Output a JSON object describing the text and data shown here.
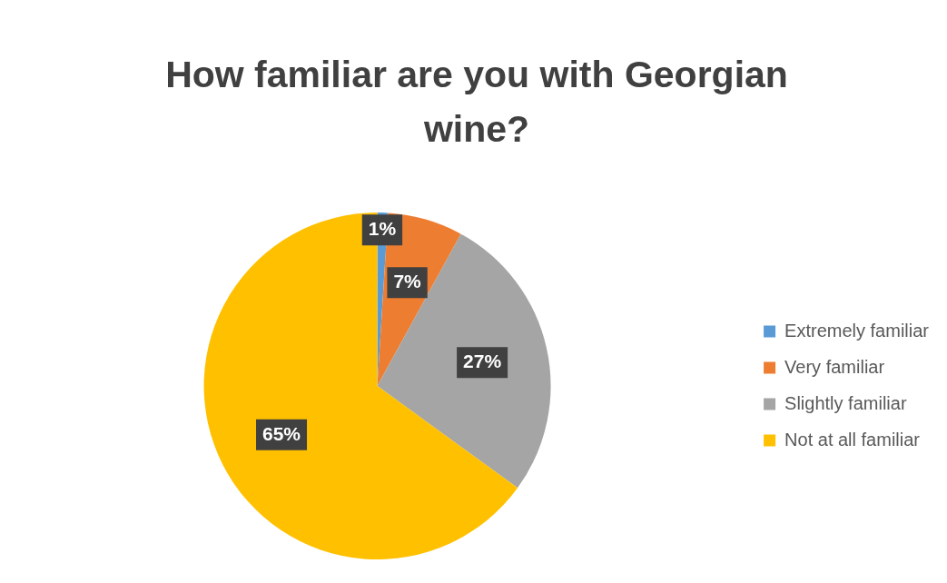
{
  "chart_data": {
    "type": "pie",
    "title": "How familiar are you with Georgian wine?",
    "categories": [
      "Extremely familiar",
      "Very familiar",
      "Slightly familiar",
      "Not at all familiar"
    ],
    "values": [
      1,
      7,
      27,
      65
    ],
    "colors": [
      "#5b9bd5",
      "#ed7d31",
      "#a5a5a5",
      "#ffc000"
    ],
    "value_labels": [
      "1%",
      "7%",
      "27%",
      "65%"
    ],
    "legend": "right"
  }
}
